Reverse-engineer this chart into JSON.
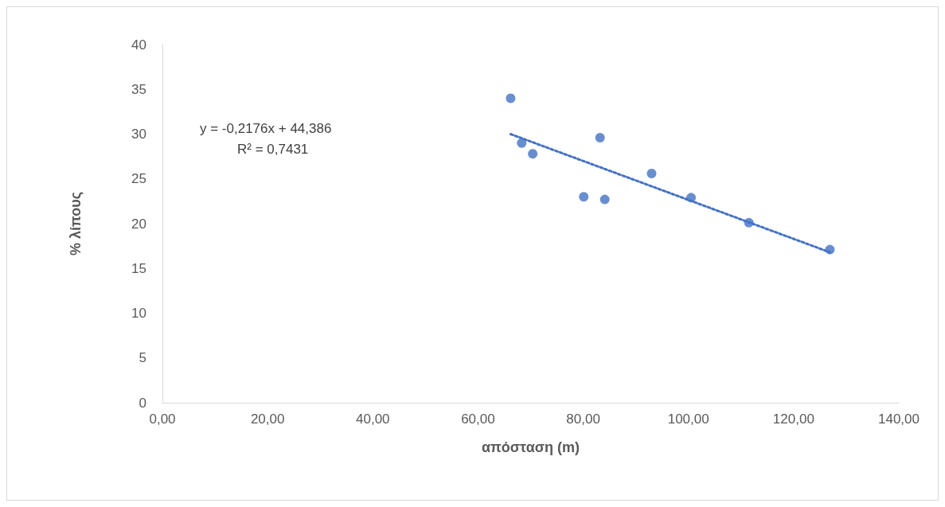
{
  "chart_data": {
    "type": "scatter",
    "xlabel": "απόσταση (m)",
    "ylabel": "% λίπους",
    "annotations": [
      "y = -0,2176x + 44,386",
      "R² = 0,7431"
    ],
    "xlim": [
      0,
      140
    ],
    "xticks": [
      {
        "value": 0,
        "label": "0,00"
      },
      {
        "value": 20,
        "label": "20,00"
      },
      {
        "value": 40,
        "label": "40,00"
      },
      {
        "value": 60,
        "label": "60,00"
      },
      {
        "value": 80,
        "label": "80,00"
      },
      {
        "value": 100,
        "label": "100,00"
      },
      {
        "value": 120,
        "label": "120,00"
      },
      {
        "value": 140,
        "label": "140,00"
      }
    ],
    "ylim": [
      0,
      40
    ],
    "yticks": [
      0,
      5,
      10,
      15,
      20,
      25,
      30,
      35,
      40
    ],
    "grid": false,
    "marker": "circle",
    "series": [
      {
        "color": "#4472c4",
        "x": [
          66.2,
          68.3,
          70.4,
          80.1,
          83.2,
          84.1,
          93.0,
          100.5,
          111.5,
          126.9
        ],
        "values": [
          34.0,
          29.0,
          27.8,
          23.0,
          29.6,
          22.7,
          25.6,
          22.9,
          20.1,
          17.1
        ]
      },
      {
        "type": "line",
        "color": "#4472c4",
        "marker": "none",
        "line_style": "dotted",
        "x": [
          66.2,
          126.9
        ],
        "values": [
          30.0,
          16.8
        ]
      }
    ]
  }
}
